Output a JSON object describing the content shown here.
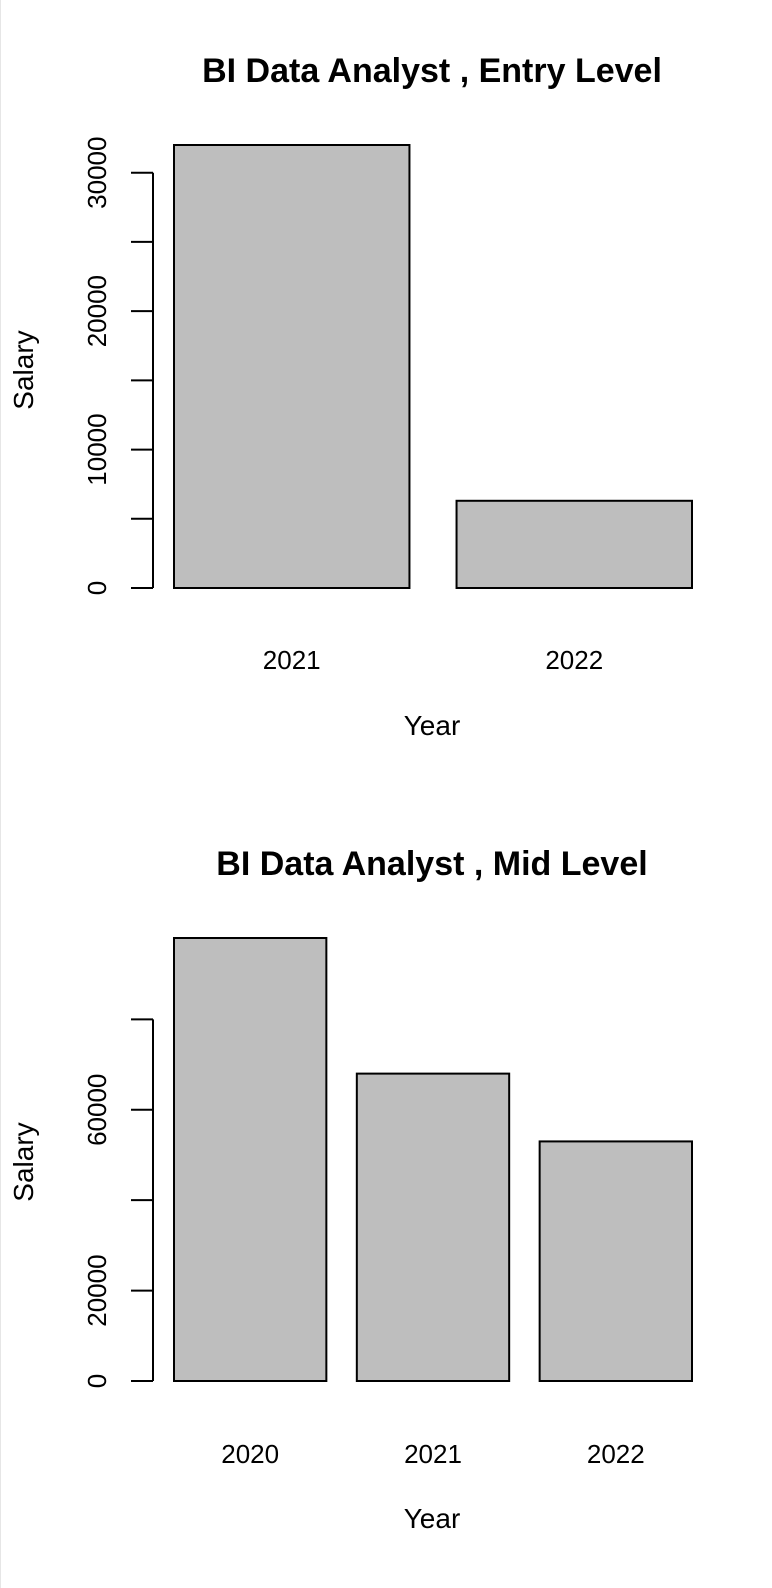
{
  "chart_data": [
    {
      "type": "bar",
      "title": "BI Data Analyst ,  Entry Level",
      "xlabel": "Year",
      "ylabel": "Salary",
      "categories": [
        "2021",
        "2022"
      ],
      "values": [
        32000,
        6300
      ],
      "ylim": [
        0,
        32000
      ],
      "yticks": [
        0,
        5000,
        10000,
        15000,
        20000,
        25000,
        30000
      ],
      "ytick_labels": [
        "0",
        "",
        "10000",
        "",
        "20000",
        "",
        "30000"
      ],
      "grid": false,
      "bar_color": "#bebebe"
    },
    {
      "type": "bar",
      "title": "BI Data Analyst ,  Mid Level",
      "xlabel": "Year",
      "ylabel": "Salary",
      "categories": [
        "2020",
        "2021",
        "2022"
      ],
      "values": [
        98000,
        68000,
        53000
      ],
      "ylim": [
        0,
        98000
      ],
      "yticks": [
        0,
        20000,
        40000,
        60000,
        80000
      ],
      "ytick_labels": [
        "0",
        "20000",
        "",
        "60000",
        ""
      ],
      "grid": false,
      "bar_color": "#bebebe"
    }
  ]
}
